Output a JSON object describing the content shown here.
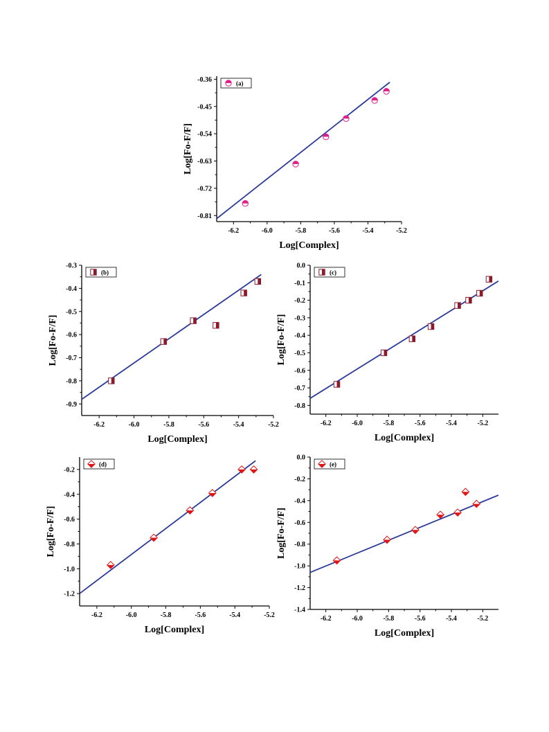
{
  "figure": {
    "background": "#ffffff"
  },
  "chart_data": [
    {
      "type": "scatter",
      "marker": "circle-half",
      "marker_color": "#e0208a",
      "fit_color": "#2a3a9a",
      "legend": "(a)",
      "legend_position": "top-left",
      "xlabel": "Log[Complex]",
      "ylabel": "Log[Fo-F/F]",
      "xlim": [
        -6.3,
        -5.2
      ],
      "ylim": [
        -0.83,
        -0.35
      ],
      "xticks": [
        -6.2,
        -6.0,
        -5.8,
        -5.6,
        -5.4,
        -5.2
      ],
      "xtick_labels": [
        "-6.2",
        "-6.0",
        "-5.8",
        "-5.6",
        "-5.4",
        "-5.2"
      ],
      "yticks": [
        -0.81,
        -0.72,
        -0.63,
        -0.54,
        -0.45,
        -0.36
      ],
      "ytick_labels": [
        "-0.81",
        "-0.72",
        "-0.63",
        "-0.54",
        "-0.45",
        "-0.36"
      ],
      "x": [
        -6.13,
        -5.83,
        -5.65,
        -5.53,
        -5.36,
        -5.29
      ],
      "y": [
        -0.77,
        -0.64,
        -0.55,
        -0.49,
        -0.43,
        -0.4
      ],
      "fit": {
        "x": [
          -6.3,
          -5.27
        ],
        "y": [
          -0.82,
          -0.37
        ]
      }
    },
    {
      "type": "scatter",
      "marker": "square-half",
      "marker_color": "#8b1a2b",
      "fit_color": "#2a3a9a",
      "legend": "(b)",
      "legend_position": "top-left",
      "xlabel": "Log[Complex]",
      "ylabel": "Log[Fo-F/F]",
      "xlim": [
        -6.3,
        -5.2
      ],
      "ylim": [
        -0.95,
        -0.3
      ],
      "xticks": [
        -6.2,
        -6.0,
        -5.8,
        -5.6,
        -5.4,
        -5.2
      ],
      "xtick_labels": [
        "-6.2",
        "-6.0",
        "-5.8",
        "-5.6",
        "-5.4",
        "-5.2"
      ],
      "yticks": [
        -0.9,
        -0.8,
        -0.7,
        -0.6,
        -0.5,
        -0.4,
        -0.3
      ],
      "ytick_labels": [
        "-0.9",
        "-0.8",
        "-0.7",
        "-0.6",
        "-0.5",
        "-0.4",
        "-0.3"
      ],
      "x": [
        -6.13,
        -5.83,
        -5.66,
        -5.53,
        -5.37,
        -5.29
      ],
      "y": [
        -0.8,
        -0.63,
        -0.54,
        -0.56,
        -0.42,
        -0.37
      ],
      "fit": {
        "x": [
          -6.3,
          -5.27
        ],
        "y": [
          -0.88,
          -0.34
        ]
      }
    },
    {
      "type": "scatter",
      "marker": "square-half",
      "marker_color": "#8b1a2b",
      "fit_color": "#2a3a9a",
      "legend": "(c)",
      "legend_position": "top-left",
      "xlabel": "Log[Complex]",
      "ylabel": "Log[Fo-F/F]",
      "xlim": [
        -6.3,
        -5.1
      ],
      "ylim": [
        -0.85,
        0.0
      ],
      "xticks": [
        -6.2,
        -6.0,
        -5.8,
        -5.6,
        -5.4,
        -5.2
      ],
      "xtick_labels": [
        "-6.2",
        "-6.0",
        "-5.8",
        "-5.6",
        "-5.4",
        "-5.2"
      ],
      "yticks": [
        -0.8,
        -0.7,
        -0.6,
        -0.5,
        -0.4,
        -0.3,
        -0.2,
        -0.1,
        0.0
      ],
      "ytick_labels": [
        "-0.8",
        "-0.7",
        "-0.6",
        "-0.5",
        "-0.4",
        "-0.3",
        "-0.2",
        "-0.1",
        "0.0"
      ],
      "x": [
        -6.13,
        -5.83,
        -5.65,
        -5.53,
        -5.36,
        -5.29,
        -5.22,
        -5.16
      ],
      "y": [
        -0.68,
        -0.5,
        -0.42,
        -0.35,
        -0.23,
        -0.2,
        -0.16,
        -0.08
      ],
      "fit": {
        "x": [
          -6.3,
          -5.1
        ],
        "y": [
          -0.76,
          -0.09
        ]
      }
    },
    {
      "type": "scatter",
      "marker": "diamond-half",
      "marker_color": "#e01515",
      "fit_color": "#2a3a9a",
      "legend": "(d)",
      "legend_position": "top-left",
      "xlabel": "Log[Complex]",
      "ylabel": "Log[Fo-F/F]",
      "xlim": [
        -6.3,
        -5.2
      ],
      "ylim": [
        -1.3,
        -0.1
      ],
      "xticks": [
        -6.2,
        -6.0,
        -5.8,
        -5.6,
        -5.4,
        -5.2
      ],
      "xtick_labels": [
        "-6.2",
        "-6.0",
        "-5.8",
        "-5.6",
        "-5.4",
        "-5.2"
      ],
      "yticks": [
        -1.2,
        -1.0,
        -0.8,
        -0.6,
        -0.4,
        -0.2
      ],
      "ytick_labels": [
        "-1.2",
        "-1.0",
        "-0.8",
        "-0.6",
        "-0.4",
        "-0.2"
      ],
      "x": [
        -6.12,
        -5.87,
        -5.66,
        -5.53,
        -5.36,
        -5.29
      ],
      "y": [
        -0.97,
        -0.75,
        -0.53,
        -0.39,
        -0.2,
        -0.2
      ],
      "fit": {
        "x": [
          -6.3,
          -5.28
        ],
        "y": [
          -1.2,
          -0.13
        ]
      }
    },
    {
      "type": "scatter",
      "marker": "diamond-half",
      "marker_color": "#e01515",
      "fit_color": "#2a3a9a",
      "legend": "(e)",
      "legend_position": "top-left",
      "xlabel": "Log[Complex]",
      "ylabel": "Log[Fo-F/F]",
      "xlim": [
        -6.3,
        -5.1
      ],
      "ylim": [
        -1.4,
        0.0
      ],
      "xticks": [
        -6.2,
        -6.0,
        -5.8,
        -5.6,
        -5.4,
        -5.2
      ],
      "xtick_labels": [
        "-6.2",
        "-6.0",
        "-5.8",
        "-5.6",
        "-5.4",
        "-5.2"
      ],
      "yticks": [
        -1.4,
        -1.2,
        -1.0,
        -0.8,
        -0.6,
        -0.4,
        -0.2,
        0.0
      ],
      "ytick_labels": [
        "-1.4",
        "-1.2",
        "-1.0",
        "-0.8",
        "-0.6",
        "-0.4",
        "-0.2",
        "0.0"
      ],
      "x": [
        -6.13,
        -5.81,
        -5.63,
        -5.47,
        -5.36,
        -5.31,
        -5.24
      ],
      "y": [
        -0.95,
        -0.76,
        -0.67,
        -0.53,
        -0.51,
        -0.32,
        -0.43
      ],
      "fit": {
        "x": [
          -6.3,
          -5.1
        ],
        "y": [
          -1.06,
          -0.35
        ]
      }
    }
  ]
}
